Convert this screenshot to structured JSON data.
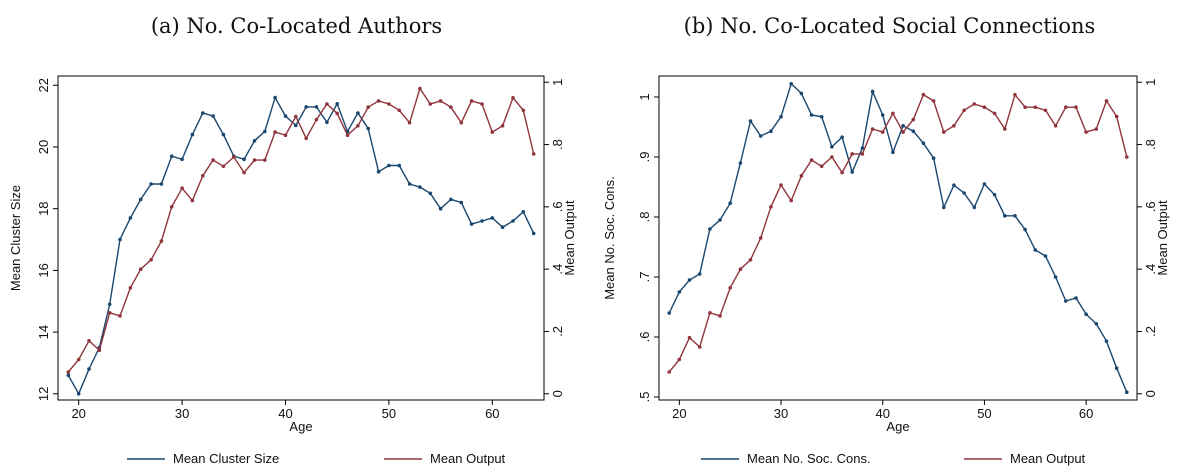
{
  "colors": {
    "blue": "#1a476f",
    "red": "#90353b"
  },
  "panels": [
    {
      "title": "(a) No. Co-Located Authors",
      "chart_data": {
        "type": "line",
        "xlabel": "Age",
        "ylabel": "Mean Cluster Size",
        "y2label": "Mean Output",
        "xlim": [
          18,
          65
        ],
        "ylim": [
          11.8,
          22.3
        ],
        "y2lim": [
          -0.02,
          1.02
        ],
        "xticks": [
          "20",
          "30",
          "40",
          "50",
          "60"
        ],
        "yticks": [
          "12",
          "14",
          "16",
          "18",
          "20",
          "22"
        ],
        "y2ticks": [
          "0",
          ".2",
          ".4",
          ".6",
          ".8",
          "1"
        ],
        "x": [
          19,
          20,
          21,
          22,
          23,
          24,
          25,
          26,
          27,
          28,
          29,
          30,
          31,
          32,
          33,
          34,
          35,
          36,
          37,
          38,
          39,
          40,
          41,
          42,
          43,
          44,
          45,
          46,
          47,
          48,
          49,
          50,
          51,
          52,
          53,
          54,
          55,
          56,
          57,
          58,
          59,
          60,
          61,
          62,
          63,
          64
        ],
        "series": [
          {
            "name": "Mean Cluster Size",
            "axis": "left",
            "color": "blue",
            "values": [
              12.6,
              12.0,
              12.8,
              13.5,
              14.9,
              17.0,
              17.7,
              18.3,
              18.8,
              18.8,
              19.7,
              19.6,
              20.4,
              21.1,
              21.0,
              20.4,
              19.7,
              19.6,
              20.2,
              20.5,
              21.6,
              21.0,
              20.7,
              21.3,
              21.3,
              20.8,
              21.4,
              20.5,
              21.1,
              20.6,
              19.2,
              19.4,
              19.4,
              18.8,
              18.7,
              18.5,
              18.0,
              18.3,
              18.2,
              17.5,
              17.6,
              17.7,
              17.4,
              17.6,
              17.9,
              17.2
            ]
          },
          {
            "name": "Mean Output",
            "axis": "right",
            "color": "red",
            "values": [
              0.07,
              0.11,
              0.17,
              0.14,
              0.26,
              0.25,
              0.34,
              0.4,
              0.43,
              0.49,
              0.6,
              0.66,
              0.62,
              0.7,
              0.75,
              0.73,
              0.76,
              0.71,
              0.75,
              0.75,
              0.84,
              0.83,
              0.89,
              0.82,
              0.88,
              0.93,
              0.9,
              0.83,
              0.86,
              0.92,
              0.94,
              0.93,
              0.91,
              0.87,
              0.98,
              0.93,
              0.94,
              0.92,
              0.87,
              0.94,
              0.93,
              0.84,
              0.86,
              0.95,
              0.91,
              0.77
            ]
          }
        ]
      }
    },
    {
      "title": "(b) No. Co-Located Social Connections",
      "chart_data": {
        "type": "line",
        "xlabel": "Age",
        "ylabel": "Mean No. Soc. Cons.",
        "y2label": "Mean Output",
        "xlim": [
          18,
          65
        ],
        "ylim": [
          0.495,
          1.035
        ],
        "y2lim": [
          -0.02,
          1.02
        ],
        "xticks": [
          "20",
          "30",
          "40",
          "50",
          "60"
        ],
        "yticks": [
          ".5",
          ".6",
          ".7",
          ".8",
          ".9",
          "1"
        ],
        "y2ticks": [
          "0",
          ".2",
          ".4",
          ".6",
          ".8",
          "1"
        ],
        "x": [
          19,
          20,
          21,
          22,
          23,
          24,
          25,
          26,
          27,
          28,
          29,
          30,
          31,
          32,
          33,
          34,
          35,
          36,
          37,
          38,
          39,
          40,
          41,
          42,
          43,
          44,
          45,
          46,
          47,
          48,
          49,
          50,
          51,
          52,
          53,
          54,
          55,
          56,
          57,
          58,
          59,
          60,
          61,
          62,
          63,
          64
        ],
        "series": [
          {
            "name": "Mean No. Soc. Cons.",
            "axis": "left",
            "color": "blue",
            "values": [
              0.64,
              0.675,
              0.695,
              0.705,
              0.78,
              0.795,
              0.823,
              0.89,
              0.96,
              0.935,
              0.943,
              0.967,
              1.022,
              1.006,
              0.97,
              0.967,
              0.917,
              0.933,
              0.875,
              0.915,
              1.009,
              0.97,
              0.908,
              0.952,
              0.943,
              0.923,
              0.898,
              0.816,
              0.853,
              0.84,
              0.816,
              0.855,
              0.837,
              0.802,
              0.802,
              0.779,
              0.745,
              0.735,
              0.7,
              0.66,
              0.665,
              0.638,
              0.622,
              0.593,
              0.548,
              0.508
            ]
          },
          {
            "name": "Mean Output",
            "axis": "right",
            "color": "red",
            "values": [
              0.07,
              0.11,
              0.18,
              0.15,
              0.26,
              0.25,
              0.34,
              0.4,
              0.43,
              0.5,
              0.6,
              0.67,
              0.62,
              0.7,
              0.75,
              0.73,
              0.76,
              0.71,
              0.77,
              0.77,
              0.85,
              0.84,
              0.9,
              0.84,
              0.88,
              0.96,
              0.94,
              0.84,
              0.86,
              0.91,
              0.93,
              0.92,
              0.9,
              0.85,
              0.96,
              0.92,
              0.92,
              0.91,
              0.86,
              0.92,
              0.92,
              0.84,
              0.85,
              0.94,
              0.89,
              0.76
            ]
          }
        ]
      }
    }
  ]
}
